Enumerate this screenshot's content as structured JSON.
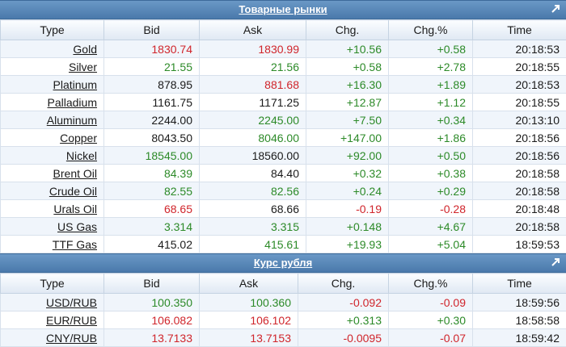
{
  "commodities": {
    "title": "Товарные рынки",
    "columns": [
      "Type",
      "Bid",
      "Ask",
      "Chg.",
      "Chg.%",
      "Time"
    ],
    "rows": [
      {
        "type": "Gold",
        "bid": "1830.74",
        "bid_c": "down",
        "ask": "1830.99",
        "ask_c": "down",
        "chg": "+10.56",
        "chg_c": "up",
        "pct": "+0.58",
        "pct_c": "up",
        "time": "20:18:53"
      },
      {
        "type": "Silver",
        "bid": "21.55",
        "bid_c": "up",
        "ask": "21.56",
        "ask_c": "up",
        "chg": "+0.58",
        "chg_c": "up",
        "pct": "+2.78",
        "pct_c": "up",
        "time": "20:18:55"
      },
      {
        "type": "Platinum",
        "bid": "878.95",
        "bid_c": "flat",
        "ask": "881.68",
        "ask_c": "down",
        "chg": "+16.30",
        "chg_c": "up",
        "pct": "+1.89",
        "pct_c": "up",
        "time": "20:18:53"
      },
      {
        "type": "Palladium",
        "bid": "1161.75",
        "bid_c": "flat",
        "ask": "1171.25",
        "ask_c": "flat",
        "chg": "+12.87",
        "chg_c": "up",
        "pct": "+1.12",
        "pct_c": "up",
        "time": "20:18:55"
      },
      {
        "type": "Aluminum",
        "bid": "2244.00",
        "bid_c": "flat",
        "ask": "2245.00",
        "ask_c": "up",
        "chg": "+7.50",
        "chg_c": "up",
        "pct": "+0.34",
        "pct_c": "up",
        "time": "20:13:10"
      },
      {
        "type": "Copper",
        "bid": "8043.50",
        "bid_c": "flat",
        "ask": "8046.00",
        "ask_c": "up",
        "chg": "+147.00",
        "chg_c": "up",
        "pct": "+1.86",
        "pct_c": "up",
        "time": "20:18:56"
      },
      {
        "type": "Nickel",
        "bid": "18545.00",
        "bid_c": "up",
        "ask": "18560.00",
        "ask_c": "flat",
        "chg": "+92.00",
        "chg_c": "up",
        "pct": "+0.50",
        "pct_c": "up",
        "time": "20:18:56"
      },
      {
        "type": "Brent Oil",
        "bid": "84.39",
        "bid_c": "up",
        "ask": "84.40",
        "ask_c": "flat",
        "chg": "+0.32",
        "chg_c": "up",
        "pct": "+0.38",
        "pct_c": "up",
        "time": "20:18:58"
      },
      {
        "type": "Crude Oil",
        "bid": "82.55",
        "bid_c": "up",
        "ask": "82.56",
        "ask_c": "up",
        "chg": "+0.24",
        "chg_c": "up",
        "pct": "+0.29",
        "pct_c": "up",
        "time": "20:18:58"
      },
      {
        "type": "Urals Oil",
        "bid": "68.65",
        "bid_c": "down",
        "ask": "68.66",
        "ask_c": "flat",
        "chg": "-0.19",
        "chg_c": "down",
        "pct": "-0.28",
        "pct_c": "down",
        "time": "20:18:48"
      },
      {
        "type": "US Gas",
        "bid": "3.314",
        "bid_c": "up",
        "ask": "3.315",
        "ask_c": "up",
        "chg": "+0.148",
        "chg_c": "up",
        "pct": "+4.67",
        "pct_c": "up",
        "time": "20:18:58"
      },
      {
        "type": "TTF Gas",
        "bid": "415.02",
        "bid_c": "flat",
        "ask": "415.61",
        "ask_c": "up",
        "chg": "+19.93",
        "chg_c": "up",
        "pct": "+5.04",
        "pct_c": "up",
        "time": "18:59:53"
      }
    ]
  },
  "rouble": {
    "title": "Курс рубля",
    "columns": [
      "Type",
      "Bid",
      "Ask",
      "Chg.",
      "Chg.%",
      "Time"
    ],
    "rows": [
      {
        "type": "USD/RUB",
        "bid": "100.350",
        "bid_c": "up",
        "ask": "100.360",
        "ask_c": "up",
        "chg": "-0.092",
        "chg_c": "down",
        "pct": "-0.09",
        "pct_c": "down",
        "time": "18:59:56"
      },
      {
        "type": "EUR/RUB",
        "bid": "106.082",
        "bid_c": "down",
        "ask": "106.102",
        "ask_c": "down",
        "chg": "+0.313",
        "chg_c": "up",
        "pct": "+0.30",
        "pct_c": "up",
        "time": "18:58:58"
      },
      {
        "type": "CNY/RUB",
        "bid": "13.7133",
        "bid_c": "down",
        "ask": "13.7153",
        "ask_c": "down",
        "chg": "-0.0095",
        "chg_c": "down",
        "pct": "-0.07",
        "pct_c": "down",
        "time": "18:59:42"
      }
    ]
  },
  "icons": {
    "expand": "external-link-icon"
  },
  "colors": {
    "up": "#2c8a28",
    "down": "#d0252b",
    "header": "#4a79ab"
  }
}
